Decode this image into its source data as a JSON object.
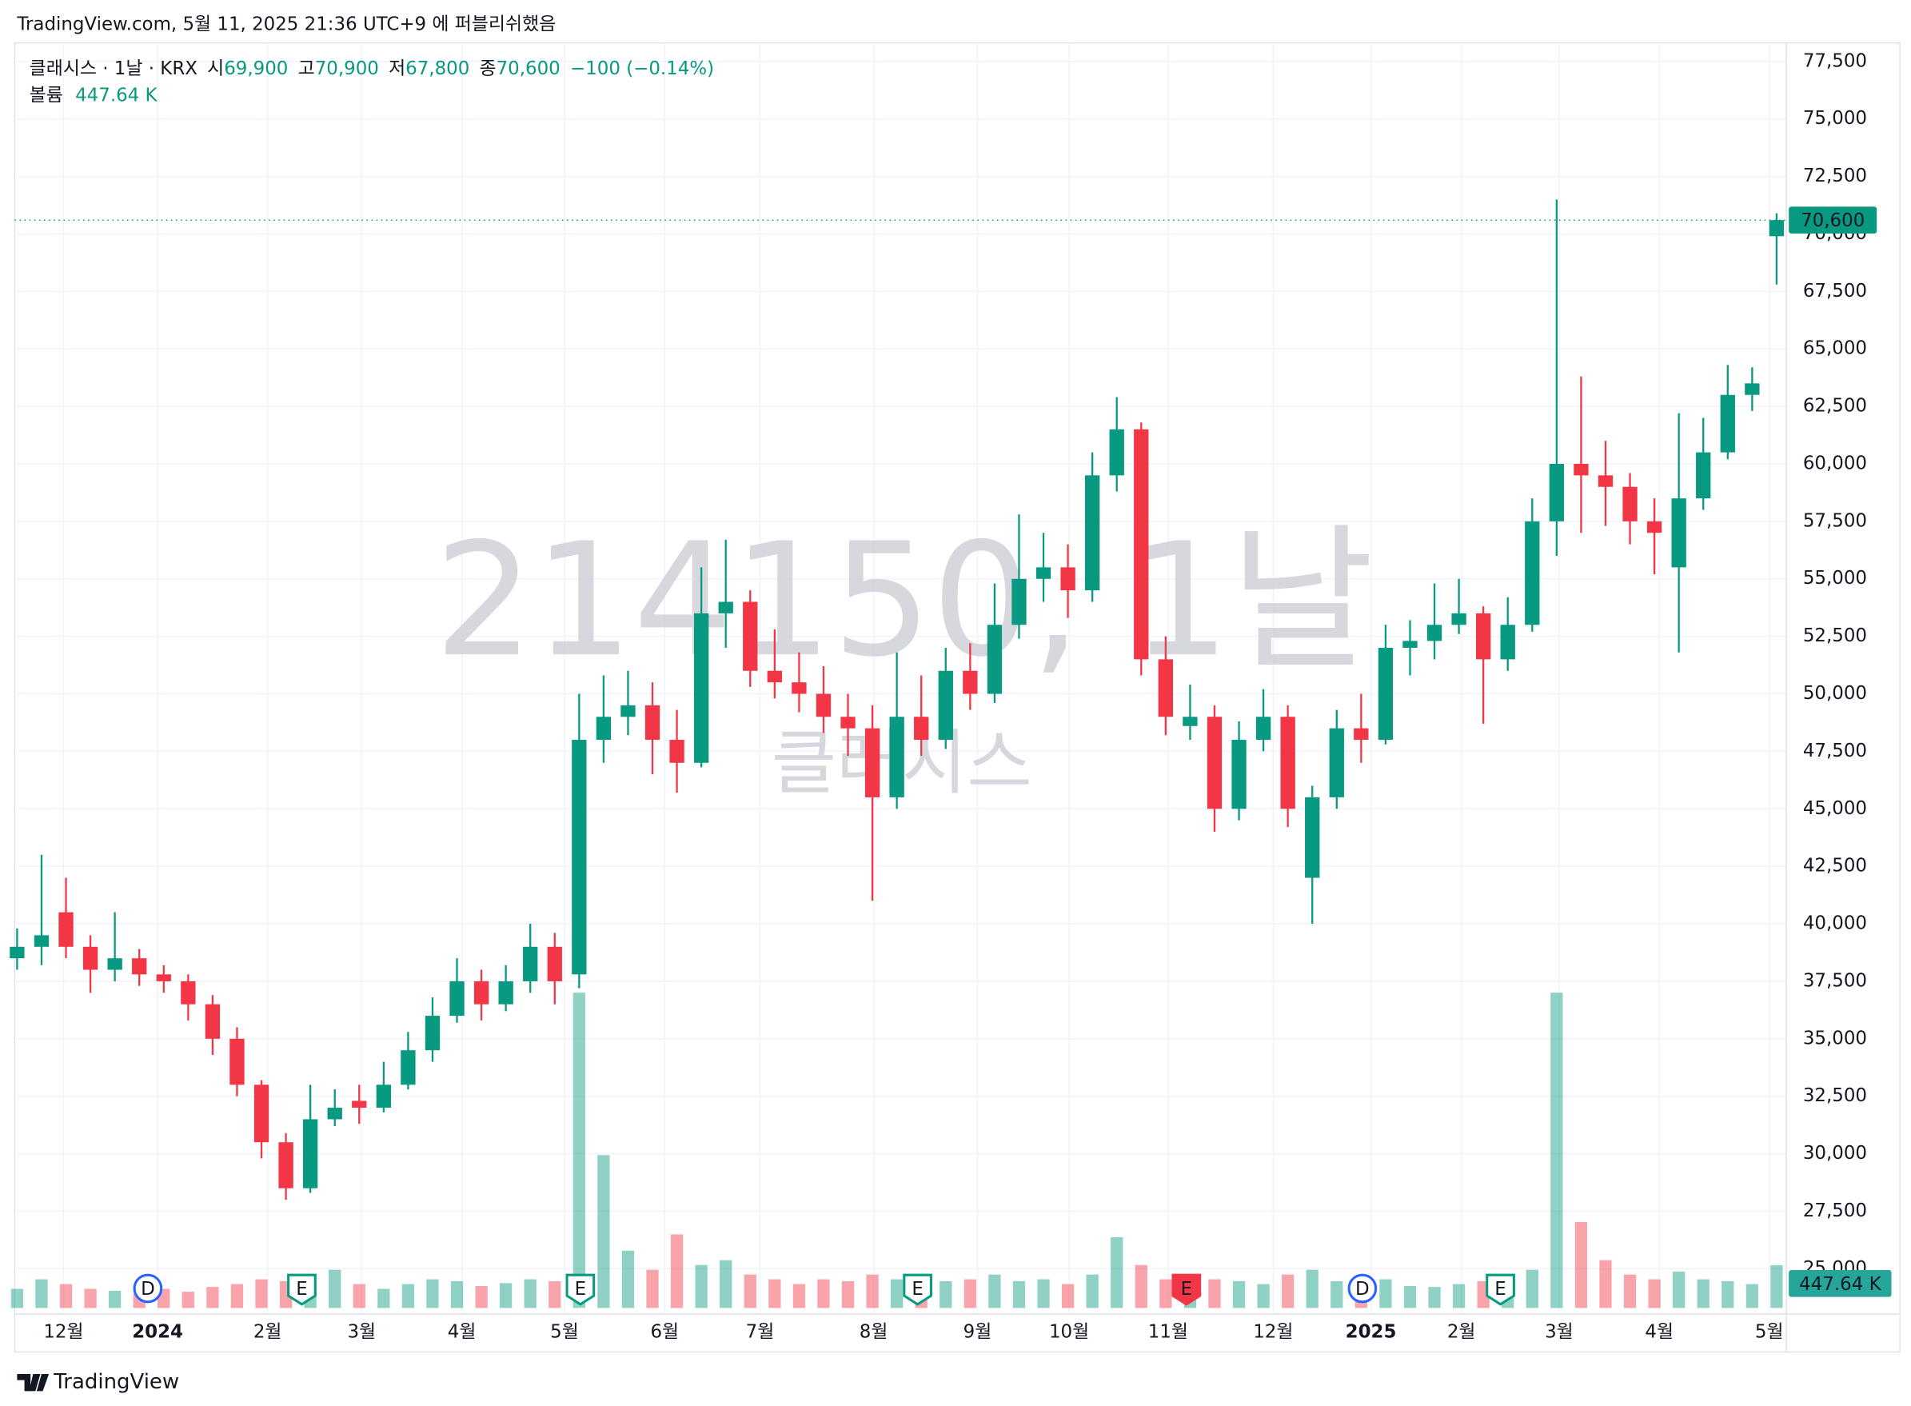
{
  "header": "TradingView.com, 5월 11, 2025 21:36 UTC+9 에 퍼블리쉬했음",
  "footer": "TradingView",
  "chart_data": {
    "type": "candlestick",
    "watermark": {
      "symbol": "214150, 1날",
      "name": "클래시스"
    },
    "legend": {
      "symbol": "클래시스 · 1날 · KRX",
      "open_label": "시",
      "open": "69,900",
      "high_label": "고",
      "high": "70,900",
      "low_label": "저",
      "low": "67,800",
      "close_label": "종",
      "close": "70,600",
      "change": "−100 (−0.14%)",
      "volume_label": "볼륨",
      "volume": "447.64 K"
    },
    "up_color": "#089981",
    "down_color": "#f23645",
    "ohlc": {
      "open": [
        38500,
        39000,
        40500,
        39000,
        38000,
        38500,
        37800,
        37500,
        36500,
        35000,
        33000,
        30500,
        28500,
        31500,
        32300,
        32000,
        33000,
        34500,
        36000,
        37500,
        36500,
        37500,
        39000,
        37800,
        48000,
        49000,
        49500,
        48000,
        47000,
        53500,
        54000,
        51000,
        50500,
        50000,
        49000,
        48500,
        45500,
        49000,
        48000,
        51000,
        50000,
        53000,
        55000,
        55500,
        54500,
        59500,
        61500,
        51500,
        48600,
        49000,
        45000,
        48000,
        49000,
        42000,
        45500,
        48500,
        48000,
        52000,
        52300,
        53000,
        53500,
        51500,
        53000,
        57500,
        60000,
        59500,
        59000,
        57500,
        55500,
        58500,
        60500,
        63000,
        69900
      ],
      "high": [
        39800,
        43000,
        42000,
        39500,
        40500,
        38900,
        38200,
        37800,
        36900,
        35500,
        33200,
        30900,
        33000,
        32800,
        33000,
        34000,
        35300,
        36800,
        38500,
        38000,
        38200,
        40000,
        39600,
        50000,
        50800,
        51000,
        50500,
        49300,
        55500,
        56700,
        54500,
        52800,
        51800,
        51200,
        50000,
        49500,
        51800,
        50800,
        52000,
        52200,
        54800,
        57800,
        57000,
        56500,
        60500,
        62900,
        61800,
        52500,
        50400,
        49500,
        48800,
        50200,
        49500,
        46000,
        49300,
        50000,
        53000,
        53200,
        54800,
        55000,
        53800,
        54200,
        58500,
        71500,
        63800,
        61000,
        59600,
        58500,
        62200,
        62000,
        64300,
        64200,
        70900
      ],
      "low": [
        38000,
        38200,
        38500,
        37000,
        37500,
        37300,
        37000,
        35800,
        34300,
        32500,
        29800,
        28000,
        28300,
        31200,
        31300,
        31800,
        32800,
        34000,
        35700,
        35800,
        36200,
        37000,
        36500,
        37200,
        47000,
        48200,
        46500,
        45700,
        46800,
        52000,
        50300,
        49800,
        49200,
        48300,
        47300,
        41000,
        45000,
        47300,
        47600,
        49300,
        49600,
        52400,
        54000,
        53300,
        54000,
        58800,
        50800,
        48200,
        48000,
        44000,
        44500,
        47500,
        44200,
        40000,
        45000,
        47000,
        47800,
        50800,
        51500,
        52600,
        48700,
        51000,
        52700,
        56000,
        57000,
        57300,
        56500,
        55200,
        51800,
        58000,
        60200,
        62300,
        67800
      ],
      "close": [
        39000,
        39500,
        39000,
        38000,
        38500,
        37800,
        37500,
        36500,
        35000,
        33000,
        30500,
        28500,
        31500,
        32000,
        32000,
        33000,
        34500,
        36000,
        37500,
        36500,
        37500,
        39000,
        37500,
        48000,
        49000,
        49500,
        48000,
        47000,
        53500,
        54000,
        51000,
        50500,
        50000,
        49000,
        48500,
        45500,
        49000,
        48000,
        51000,
        50000,
        53000,
        55000,
        55500,
        54500,
        59500,
        61500,
        51500,
        49000,
        49000,
        45000,
        48000,
        49000,
        45000,
        45500,
        48500,
        48000,
        52000,
        52300,
        53000,
        53500,
        51500,
        53000,
        57500,
        60000,
        59500,
        59000,
        57500,
        57000,
        58500,
        60500,
        63000,
        63500,
        70600
      ]
    },
    "volume": [
      200,
      300,
      250,
      200,
      180,
      150,
      200,
      170,
      220,
      250,
      300,
      280,
      350,
      400,
      250,
      200,
      250,
      300,
      280,
      230,
      260,
      300,
      280,
      3300,
      1600,
      600,
      400,
      770,
      450,
      500,
      350,
      300,
      250,
      300,
      280,
      350,
      300,
      250,
      280,
      300,
      350,
      280,
      300,
      250,
      350,
      740,
      450,
      300,
      250,
      300,
      280,
      250,
      350,
      400,
      280,
      250,
      300,
      230,
      220,
      250,
      280,
      300,
      400,
      3300,
      900,
      500,
      350,
      300,
      380,
      300,
      280,
      250,
      447.64
    ],
    "xlim": [
      -0.1,
      72.4
    ],
    "xticks": [
      {
        "value": 1.9,
        "label": "12월"
      },
      {
        "value": 5.75,
        "label": "2024"
      },
      {
        "value": 10.25,
        "label": "2월"
      },
      {
        "value": 14.1,
        "label": "3월"
      },
      {
        "value": 18.2,
        "label": "4월"
      },
      {
        "value": 22.4,
        "label": "5월"
      },
      {
        "value": 26.5,
        "label": "6월"
      },
      {
        "value": 30.4,
        "label": "7월"
      },
      {
        "value": 35.05,
        "label": "8월"
      },
      {
        "value": 39.3,
        "label": "9월"
      },
      {
        "value": 43.05,
        "label": "10월"
      },
      {
        "value": 47.1,
        "label": "11월"
      },
      {
        "value": 51.4,
        "label": "12월"
      },
      {
        "value": 55.4,
        "label": "2025"
      },
      {
        "value": 59.1,
        "label": "2월"
      },
      {
        "value": 63.1,
        "label": "3월"
      },
      {
        "value": 67.2,
        "label": "4월"
      },
      {
        "value": 71.7,
        "label": "5월"
      }
    ],
    "ylim": [
      21380,
      78300
    ],
    "yticks": [
      {
        "value": 25000,
        "label": "25,000"
      },
      {
        "value": 27500,
        "label": "27,500"
      },
      {
        "value": 30000,
        "label": "30,000"
      },
      {
        "value": 32500,
        "label": "32,500"
      },
      {
        "value": 35000,
        "label": "35,000"
      },
      {
        "value": 37500,
        "label": "37,500"
      },
      {
        "value": 40000,
        "label": "40,000"
      },
      {
        "value": 42500,
        "label": "42,500"
      },
      {
        "value": 45000,
        "label": "45,000"
      },
      {
        "value": 47500,
        "label": "47,500"
      },
      {
        "value": 50000,
        "label": "50,000"
      },
      {
        "value": 52500,
        "label": "52,500"
      },
      {
        "value": 55000,
        "label": "55,000"
      },
      {
        "value": 57500,
        "label": "57,500"
      },
      {
        "value": 60000,
        "label": "60,000"
      },
      {
        "value": 62500,
        "label": "62,500"
      },
      {
        "value": 65000,
        "label": "65,000"
      },
      {
        "value": 67500,
        "label": "67,500"
      },
      {
        "value": 70000,
        "label": "70,000"
      },
      {
        "value": 72500,
        "label": "72,500"
      },
      {
        "value": 75000,
        "label": "75,000"
      },
      {
        "value": 77500,
        "label": "77,500"
      }
    ],
    "grid": true,
    "events": [
      {
        "label": "D",
        "x": 5.35,
        "color": "#2962ff"
      },
      {
        "label": "E",
        "x": 11.65,
        "color": "#089981"
      },
      {
        "label": "E",
        "x": 23.05,
        "color": "#089981"
      },
      {
        "label": "E",
        "x": 36.85,
        "color": "#089981"
      },
      {
        "label": "E",
        "x": 47.85,
        "color": "#f23645"
      },
      {
        "label": "D",
        "x": 55.05,
        "color": "#2962ff"
      },
      {
        "label": "E",
        "x": 60.7,
        "color": "#089981"
      }
    ]
  }
}
